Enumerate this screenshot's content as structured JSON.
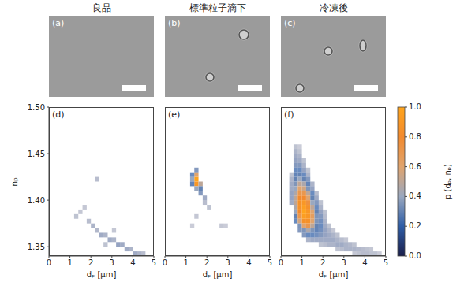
{
  "chart_data": [
    {
      "type": "heatmap",
      "title": "良品",
      "image_label": "(a)",
      "label": "(d)",
      "x_label": "dₚ [μm]",
      "y_label": "nₚ",
      "xlim": [
        0,
        5
      ],
      "xticks": [
        0,
        1,
        2,
        3,
        4,
        5
      ],
      "ylim": [
        1.34,
        1.5
      ],
      "yticks": [
        1.35,
        {
          "value": 1.4,
          "label": "1.40"
        },
        1.45,
        {
          "value": 1.5,
          "label": "1.50"
        }
      ],
      "cell_size": [
        0.2,
        0.005
      ],
      "cells": [
        [
          1.3,
          1.3825,
          0.05
        ],
        [
          1.5,
          1.3875,
          0.04
        ],
        [
          1.7,
          1.3925,
          0.04
        ],
        [
          1.9,
          1.3775,
          0.06
        ],
        [
          2.1,
          1.3725,
          0.08
        ],
        [
          2.3,
          1.4225,
          0.06
        ],
        [
          2.3,
          1.3675,
          0.07
        ],
        [
          2.5,
          1.3625,
          0.1
        ],
        [
          2.7,
          1.3625,
          0.08
        ],
        [
          2.7,
          1.3525,
          0.05
        ],
        [
          2.9,
          1.3575,
          0.1
        ],
        [
          3.1,
          1.3575,
          0.08
        ],
        [
          3.1,
          1.3675,
          0.04
        ],
        [
          3.3,
          1.3525,
          0.12
        ],
        [
          3.5,
          1.3525,
          0.1
        ],
        [
          3.7,
          1.3475,
          0.1
        ],
        [
          3.9,
          1.3475,
          0.08
        ],
        [
          4.1,
          1.3425,
          0.1
        ],
        [
          4.3,
          1.3425,
          0.08
        ],
        [
          4.5,
          1.3425,
          0.06
        ]
      ]
    },
    {
      "type": "heatmap",
      "title": "標準粒子滴下",
      "image_label": "(b)",
      "label": "(e)",
      "x_label": "dₚ [μm]",
      "tick_labels": "x",
      "xlim": [
        0,
        5
      ],
      "xticks": [
        0,
        1,
        2,
        3,
        4,
        5
      ],
      "ylim": [
        1.34,
        1.5
      ],
      "yticks": [
        1.35,
        {
          "value": 1.4,
          "label": "1.40"
        },
        1.45,
        {
          "value": 1.5,
          "label": "1.50"
        }
      ],
      "cell_size": [
        0.2,
        0.005
      ],
      "cells": [
        [
          1.5,
          1.4225,
          1.0
        ],
        [
          1.5,
          1.4175,
          0.9
        ],
        [
          1.5,
          1.4275,
          0.6
        ],
        [
          1.3,
          1.4225,
          0.4
        ],
        [
          1.7,
          1.4175,
          0.5
        ],
        [
          1.7,
          1.4125,
          0.3
        ],
        [
          1.5,
          1.4125,
          0.4
        ],
        [
          1.3,
          1.4275,
          0.2
        ],
        [
          1.7,
          1.4075,
          0.15
        ],
        [
          1.9,
          1.4025,
          0.1
        ],
        [
          1.9,
          1.3975,
          0.06
        ],
        [
          1.5,
          1.4325,
          0.15
        ],
        [
          1.3,
          1.4175,
          0.25
        ],
        [
          2.1,
          1.3925,
          0.05
        ],
        [
          1.5,
          1.3825,
          0.04
        ],
        [
          2.7,
          1.3725,
          0.04
        ],
        [
          2.9,
          1.3725,
          0.03
        ],
        [
          1.3,
          1.3725,
          0.03
        ]
      ]
    },
    {
      "type": "heatmap",
      "title": "冷凍後",
      "image_label": "(c)",
      "label": "(f)",
      "x_label": "dₚ [μm]",
      "tick_labels": "x",
      "xlim": [
        0,
        5
      ],
      "xticks": [
        0,
        1,
        2,
        3,
        4,
        5
      ],
      "ylim": [
        1.34,
        1.5
      ],
      "yticks": [
        1.35,
        {
          "value": 1.4,
          "label": "1.40"
        },
        1.45,
        {
          "value": 1.5,
          "label": "1.50"
        }
      ],
      "cell_size": [
        0.2,
        0.005
      ],
      "cells": [
        [
          0.7,
          1.4575,
          0.05
        ],
        [
          0.9,
          1.4575,
          0.03
        ],
        [
          0.7,
          1.4525,
          0.08
        ],
        [
          0.9,
          1.4525,
          0.05
        ],
        [
          0.7,
          1.4475,
          0.1
        ],
        [
          0.9,
          1.4475,
          0.08
        ],
        [
          0.7,
          1.4425,
          0.12
        ],
        [
          0.9,
          1.4425,
          0.1
        ],
        [
          1.1,
          1.4425,
          0.05
        ],
        [
          0.7,
          1.4375,
          0.15
        ],
        [
          0.9,
          1.4375,
          0.15
        ],
        [
          1.1,
          1.4375,
          0.08
        ],
        [
          0.7,
          1.4325,
          0.2
        ],
        [
          0.9,
          1.4325,
          0.2
        ],
        [
          1.1,
          1.4325,
          0.12
        ],
        [
          1.3,
          1.4325,
          0.05
        ],
        [
          0.5,
          1.4275,
          0.05
        ],
        [
          0.7,
          1.4275,
          0.25
        ],
        [
          0.9,
          1.4275,
          0.3
        ],
        [
          1.1,
          1.4275,
          0.2
        ],
        [
          1.3,
          1.4275,
          0.08
        ],
        [
          0.5,
          1.4225,
          0.08
        ],
        [
          0.7,
          1.4225,
          0.3
        ],
        [
          0.9,
          1.4225,
          0.4
        ],
        [
          1.1,
          1.4225,
          0.3
        ],
        [
          1.3,
          1.4225,
          0.15
        ],
        [
          0.5,
          1.4175,
          0.1
        ],
        [
          0.7,
          1.4175,
          0.35
        ],
        [
          0.9,
          1.4175,
          0.5
        ],
        [
          1.1,
          1.4175,
          0.45
        ],
        [
          1.3,
          1.4175,
          0.25
        ],
        [
          1.5,
          1.4175,
          0.08
        ],
        [
          0.5,
          1.4125,
          0.1
        ],
        [
          0.7,
          1.4125,
          0.4
        ],
        [
          0.9,
          1.4125,
          0.6
        ],
        [
          1.1,
          1.4125,
          0.55
        ],
        [
          1.3,
          1.4125,
          0.35
        ],
        [
          1.5,
          1.4125,
          0.12
        ],
        [
          0.5,
          1.4075,
          0.12
        ],
        [
          0.7,
          1.4075,
          0.45
        ],
        [
          0.9,
          1.4075,
          0.7
        ],
        [
          1.1,
          1.4075,
          0.7
        ],
        [
          1.3,
          1.4075,
          0.5
        ],
        [
          1.5,
          1.4075,
          0.2
        ],
        [
          1.7,
          1.4075,
          0.06
        ],
        [
          0.5,
          1.4025,
          0.12
        ],
        [
          0.7,
          1.4025,
          0.5
        ],
        [
          0.9,
          1.4025,
          0.8
        ],
        [
          1.1,
          1.4025,
          0.8
        ],
        [
          1.3,
          1.4025,
          0.6
        ],
        [
          1.5,
          1.4025,
          0.3
        ],
        [
          1.7,
          1.4025,
          0.1
        ],
        [
          0.5,
          1.3975,
          0.1
        ],
        [
          0.7,
          1.3975,
          0.5
        ],
        [
          0.9,
          1.3975,
          0.85
        ],
        [
          1.1,
          1.3975,
          0.9
        ],
        [
          1.3,
          1.3975,
          0.75
        ],
        [
          1.5,
          1.3975,
          0.4
        ],
        [
          1.7,
          1.3975,
          0.15
        ],
        [
          1.9,
          1.3975,
          0.05
        ],
        [
          0.7,
          1.3925,
          0.45
        ],
        [
          0.9,
          1.3925,
          0.85
        ],
        [
          1.1,
          1.3925,
          0.95
        ],
        [
          1.3,
          1.3925,
          0.85
        ],
        [
          1.5,
          1.3925,
          0.5
        ],
        [
          1.7,
          1.3925,
          0.2
        ],
        [
          1.9,
          1.3925,
          0.08
        ],
        [
          0.7,
          1.3875,
          0.4
        ],
        [
          0.9,
          1.3875,
          0.8
        ],
        [
          1.1,
          1.3875,
          1.0
        ],
        [
          1.3,
          1.3875,
          0.9
        ],
        [
          1.5,
          1.3875,
          0.6
        ],
        [
          1.7,
          1.3875,
          0.3
        ],
        [
          1.9,
          1.3875,
          0.12
        ],
        [
          2.1,
          1.3875,
          0.05
        ],
        [
          0.7,
          1.3825,
          0.3
        ],
        [
          0.9,
          1.3825,
          0.7
        ],
        [
          1.1,
          1.3825,
          0.95
        ],
        [
          1.3,
          1.3825,
          0.9
        ],
        [
          1.5,
          1.3825,
          0.65
        ],
        [
          1.7,
          1.3825,
          0.35
        ],
        [
          1.9,
          1.3825,
          0.15
        ],
        [
          2.1,
          1.3825,
          0.06
        ],
        [
          0.7,
          1.3775,
          0.2
        ],
        [
          0.9,
          1.3775,
          0.55
        ],
        [
          1.1,
          1.3775,
          0.85
        ],
        [
          1.3,
          1.3775,
          0.85
        ],
        [
          1.5,
          1.3775,
          0.6
        ],
        [
          1.7,
          1.3775,
          0.35
        ],
        [
          1.9,
          1.3775,
          0.18
        ],
        [
          2.1,
          1.3775,
          0.08
        ],
        [
          0.9,
          1.3725,
          0.35
        ],
        [
          1.1,
          1.3725,
          0.6
        ],
        [
          1.3,
          1.3725,
          0.7
        ],
        [
          1.5,
          1.3725,
          0.5
        ],
        [
          1.7,
          1.3725,
          0.3
        ],
        [
          1.9,
          1.3725,
          0.2
        ],
        [
          2.1,
          1.3725,
          0.1
        ],
        [
          2.3,
          1.3725,
          0.05
        ],
        [
          0.9,
          1.3675,
          0.15
        ],
        [
          1.1,
          1.3675,
          0.35
        ],
        [
          1.3,
          1.3675,
          0.45
        ],
        [
          1.5,
          1.3675,
          0.35
        ],
        [
          1.7,
          1.3675,
          0.25
        ],
        [
          1.9,
          1.3675,
          0.18
        ],
        [
          2.1,
          1.3675,
          0.12
        ],
        [
          2.3,
          1.3675,
          0.08
        ],
        [
          2.5,
          1.3675,
          0.04
        ],
        [
          1.1,
          1.3625,
          0.15
        ],
        [
          1.3,
          1.3625,
          0.2
        ],
        [
          1.5,
          1.3625,
          0.2
        ],
        [
          1.7,
          1.3625,
          0.18
        ],
        [
          1.9,
          1.3625,
          0.15
        ],
        [
          2.1,
          1.3625,
          0.12
        ],
        [
          2.3,
          1.3625,
          0.1
        ],
        [
          2.5,
          1.3625,
          0.08
        ],
        [
          2.7,
          1.3625,
          0.05
        ],
        [
          1.3,
          1.3575,
          0.08
        ],
        [
          1.5,
          1.3575,
          0.1
        ],
        [
          1.7,
          1.3575,
          0.1
        ],
        [
          1.9,
          1.3575,
          0.1
        ],
        [
          2.1,
          1.3575,
          0.1
        ],
        [
          2.3,
          1.3575,
          0.1
        ],
        [
          2.5,
          1.3575,
          0.1
        ],
        [
          2.7,
          1.3575,
          0.08
        ],
        [
          2.9,
          1.3575,
          0.06
        ],
        [
          3.1,
          1.3575,
          0.04
        ],
        [
          1.9,
          1.3525,
          0.05
        ],
        [
          2.1,
          1.3525,
          0.06
        ],
        [
          2.3,
          1.3525,
          0.08
        ],
        [
          2.5,
          1.3525,
          0.08
        ],
        [
          2.7,
          1.3525,
          0.1
        ],
        [
          2.9,
          1.3525,
          0.1
        ],
        [
          3.1,
          1.3525,
          0.08
        ],
        [
          3.3,
          1.3525,
          0.07
        ],
        [
          3.5,
          1.3525,
          0.05
        ],
        [
          2.7,
          1.3475,
          0.05
        ],
        [
          2.9,
          1.3475,
          0.06
        ],
        [
          3.1,
          1.3475,
          0.08
        ],
        [
          3.3,
          1.3475,
          0.08
        ],
        [
          3.5,
          1.3475,
          0.08
        ],
        [
          3.7,
          1.3475,
          0.07
        ],
        [
          3.9,
          1.3475,
          0.06
        ],
        [
          4.1,
          1.3475,
          0.05
        ],
        [
          4.3,
          1.3475,
          0.04
        ],
        [
          3.5,
          1.3425,
          0.04
        ],
        [
          3.7,
          1.3425,
          0.05
        ],
        [
          3.9,
          1.3425,
          0.06
        ],
        [
          4.1,
          1.3425,
          0.06
        ],
        [
          4.3,
          1.3425,
          0.05
        ],
        [
          4.5,
          1.3425,
          0.05
        ],
        [
          4.7,
          1.3425,
          0.03
        ]
      ]
    }
  ],
  "colorbar": {
    "label": "p (dₚ, nₚ)",
    "range": [
      0,
      1
    ],
    "ticks": [
      {
        "value": 0,
        "label": "0.0"
      },
      0.2,
      0.4,
      0.6,
      0.8,
      {
        "value": 1,
        "label": "1.0"
      }
    ]
  }
}
